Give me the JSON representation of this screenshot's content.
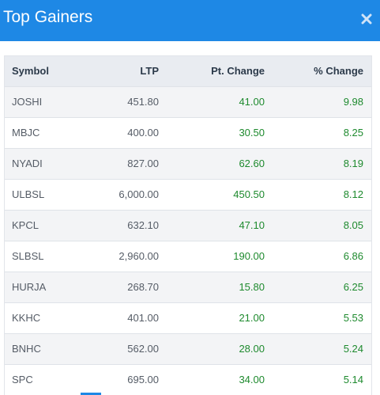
{
  "header": {
    "title": "Top Gainers",
    "close_icon": "close-icon"
  },
  "table": {
    "columns": [
      "Symbol",
      "LTP",
      "Pt. Change",
      "% Change"
    ],
    "rows": [
      {
        "symbol": "JOSHI",
        "ltp": "451.80",
        "pt_change": "41.00",
        "pct_change": "9.98"
      },
      {
        "symbol": "MBJC",
        "ltp": "400.00",
        "pt_change": "30.50",
        "pct_change": "8.25"
      },
      {
        "symbol": "NYADI",
        "ltp": "827.00",
        "pt_change": "62.60",
        "pct_change": "8.19"
      },
      {
        "symbol": "ULBSL",
        "ltp": "6,000.00",
        "pt_change": "450.50",
        "pct_change": "8.12"
      },
      {
        "symbol": "KPCL",
        "ltp": "632.10",
        "pt_change": "47.10",
        "pct_change": "8.05"
      },
      {
        "symbol": "SLBSL",
        "ltp": "2,960.00",
        "pt_change": "190.00",
        "pct_change": "6.86"
      },
      {
        "symbol": "HURJA",
        "ltp": "268.70",
        "pt_change": "15.80",
        "pct_change": "6.25"
      },
      {
        "symbol": "KKHC",
        "ltp": "401.00",
        "pt_change": "21.00",
        "pct_change": "5.53"
      },
      {
        "symbol": "BNHC",
        "ltp": "562.00",
        "pt_change": "28.00",
        "pct_change": "5.24"
      },
      {
        "symbol": "SPC",
        "ltp": "695.00",
        "pt_change": "34.00",
        "pct_change": "5.14"
      }
    ]
  },
  "colors": {
    "header_bg": "#1e88e5",
    "gain": "#1e8a2e"
  }
}
